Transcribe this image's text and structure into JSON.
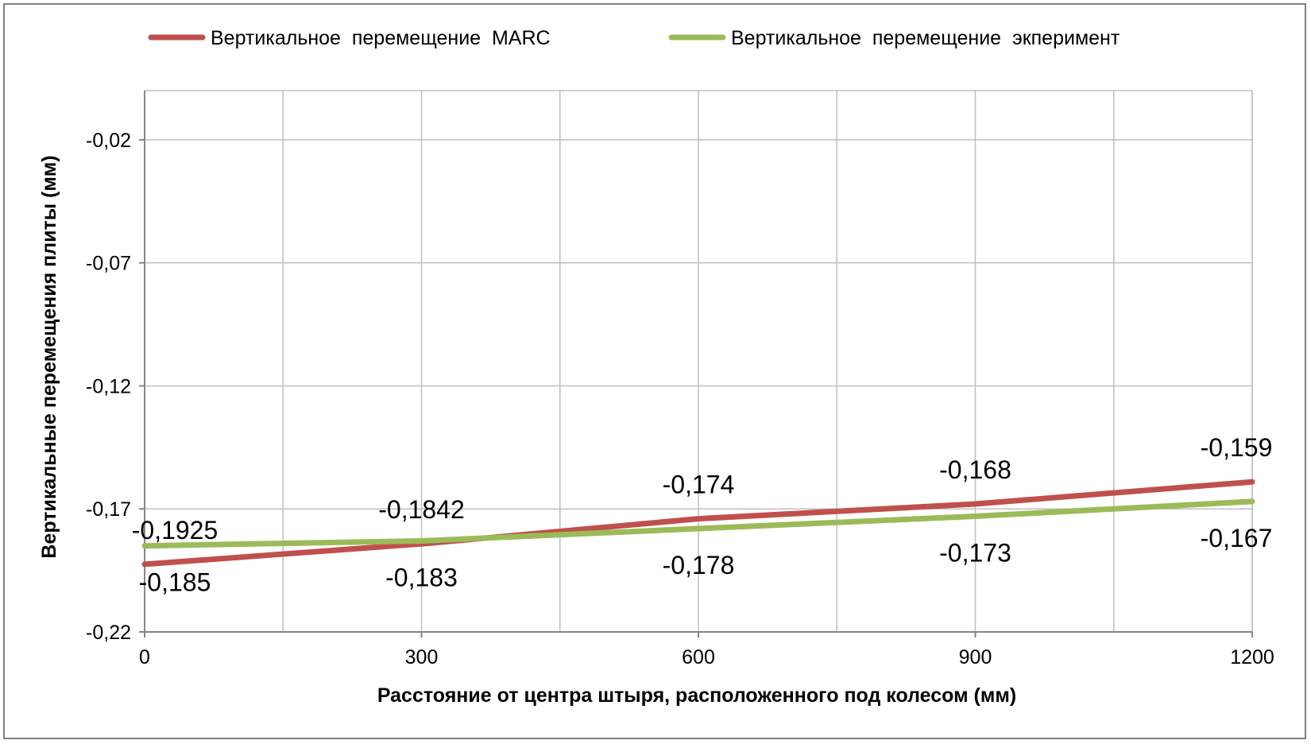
{
  "chart_data": {
    "type": "line",
    "xlabel": "Расстояние от центра штыря, расположенного под колесом (мм)",
    "ylabel": "Вертикальные перемещения плиты (мм)",
    "xlim": [
      0,
      1200
    ],
    "ylim": [
      -0.22,
      0.0
    ],
    "x_ticks": [
      0,
      300,
      600,
      900,
      1200
    ],
    "x_tick_labels": [
      "0",
      "300",
      "600",
      "900",
      "1200"
    ],
    "y_ticks": [
      -0.02,
      -0.07,
      -0.12,
      -0.17,
      -0.22
    ],
    "y_tick_labels": [
      "-0,02",
      "-0,07",
      "-0,12",
      "-0,17",
      "-0,22"
    ],
    "vertical_gridlines": [
      0,
      150,
      300,
      450,
      600,
      750,
      900,
      1050,
      1200
    ],
    "grid": true,
    "legend_position": "top",
    "series": [
      {
        "name": "Вертикальное  перемещение  MARC",
        "color": "#c0504d",
        "x": [
          0,
          300,
          600,
          900,
          1200
        ],
        "y": [
          -0.1925,
          -0.1842,
          -0.174,
          -0.168,
          -0.159
        ],
        "labels": [
          "-0,1925",
          "-0,1842",
          "-0,174",
          "-0,168",
          "-0,159"
        ]
      },
      {
        "name": "Вертикальное  перемещение  экперимент",
        "color": "#9bbb59",
        "x": [
          0,
          300,
          600,
          900,
          1200
        ],
        "y": [
          -0.185,
          -0.183,
          -0.178,
          -0.173,
          -0.167
        ],
        "labels": [
          "-0,185",
          "-0,183",
          "-0,178",
          "-0,173",
          "-0,167"
        ]
      }
    ]
  }
}
